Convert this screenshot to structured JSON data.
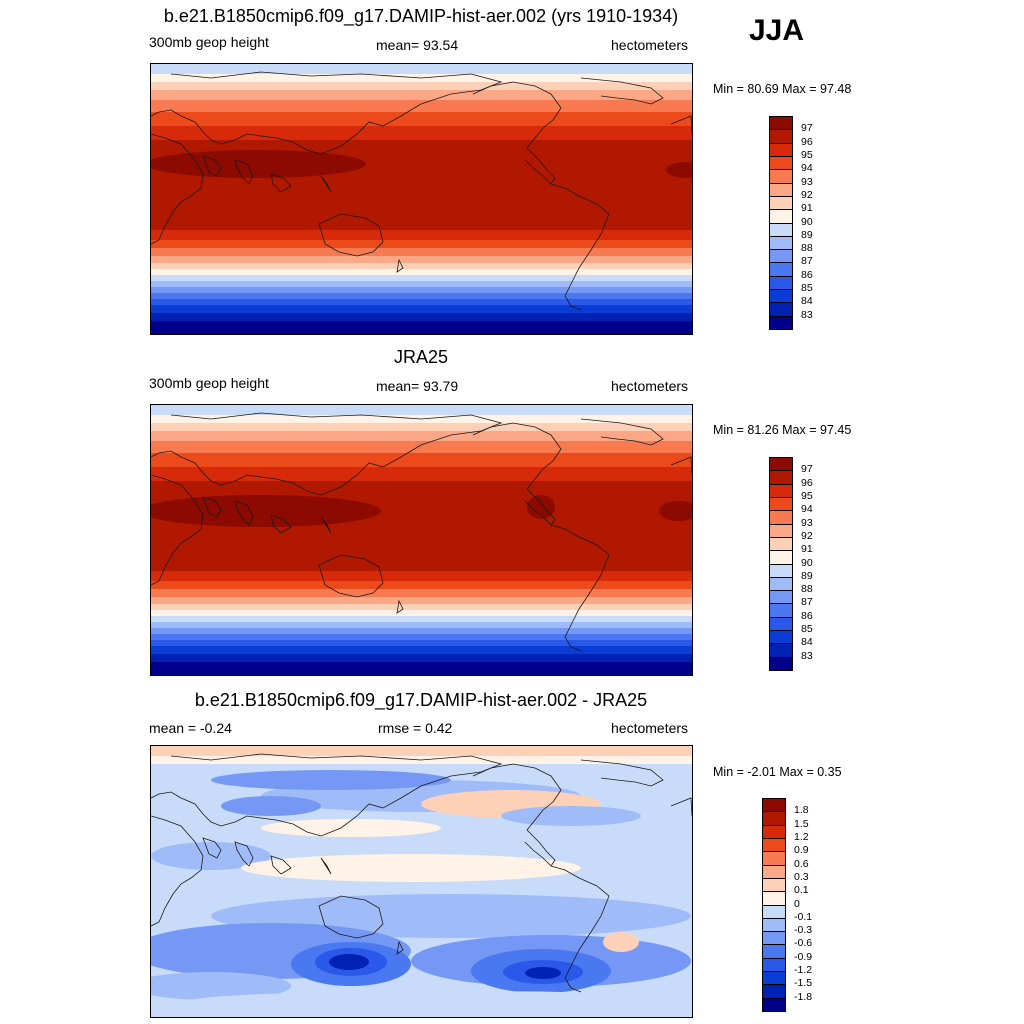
{
  "season": "JJA",
  "panels": [
    {
      "title": "b.e21.B1850cmip6.f09_g17.DAMIP-hist-aer.002 (yrs 1910-1934)",
      "left_label": "300mb geop height",
      "center_label": "mean=  93.54",
      "right_label": "hectometers",
      "minmax": "Min =  80.69 Max =  97.48"
    },
    {
      "title": "JRA25",
      "left_label": "300mb geop height",
      "center_label": "mean=  93.79",
      "right_label": "hectometers",
      "minmax": "Min =  81.26 Max =  97.45"
    },
    {
      "title": "b.e21.B1850cmip6.f09_g17.DAMIP-hist-aer.002 - JRA25",
      "left_label": "mean =  -0.24",
      "center_label": "rmse =   0.42",
      "right_label": "hectometers",
      "minmax": "Min =  -2.01 Max =   0.35"
    }
  ],
  "chart_data": [
    {
      "type": "heatmap",
      "title": "b.e21.B1850cmip6.f09_g17.DAMIP-hist-aer.002 (yrs 1910-1934)",
      "variable": "300mb geop height",
      "units": "hectometers",
      "mean": 93.54,
      "min": 80.69,
      "max": 97.48,
      "levels": [
        83,
        84,
        85,
        86,
        87,
        88,
        89,
        90,
        91,
        92,
        93,
        94,
        95,
        96,
        97
      ],
      "colors": [
        "#00008a",
        "#0022b4",
        "#0a3cd6",
        "#2a58e8",
        "#4a78f0",
        "#7498f4",
        "#a0bcf8",
        "#c8dcfa",
        "#fff2e6",
        "#fdd0b8",
        "#fca886",
        "#f77a50",
        "#ec4a1a",
        "#d62a0a",
        "#b01800",
        "#8c0a00"
      ]
    },
    {
      "type": "heatmap",
      "title": "JRA25",
      "variable": "300mb geop height",
      "units": "hectometers",
      "mean": 93.79,
      "min": 81.26,
      "max": 97.45,
      "levels": [
        83,
        84,
        85,
        86,
        87,
        88,
        89,
        90,
        91,
        92,
        93,
        94,
        95,
        96,
        97
      ],
      "colors": [
        "#00008a",
        "#0022b4",
        "#0a3cd6",
        "#2a58e8",
        "#4a78f0",
        "#7498f4",
        "#a0bcf8",
        "#c8dcfa",
        "#fff2e6",
        "#fdd0b8",
        "#fca886",
        "#f77a50",
        "#ec4a1a",
        "#d62a0a",
        "#b01800",
        "#8c0a00"
      ]
    },
    {
      "type": "heatmap",
      "title": "b.e21.B1850cmip6.f09_g17.DAMIP-hist-aer.002 - JRA25",
      "units": "hectometers",
      "mean": -0.24,
      "rmse": 0.42,
      "min": -2.01,
      "max": 0.35,
      "levels": [
        -1.8,
        -1.5,
        -1.2,
        -0.9,
        -0.6,
        -0.3,
        -0.1,
        0,
        0.1,
        0.3,
        0.6,
        0.9,
        1.2,
        1.5,
        1.8
      ],
      "colors": [
        "#00008a",
        "#0022b4",
        "#0a3cd6",
        "#2a58e8",
        "#4a78f0",
        "#7498f4",
        "#a0bcf8",
        "#c8dcfa",
        "#fff2e6",
        "#fdd0b8",
        "#fca886",
        "#f77a50",
        "#ec4a1a",
        "#d62a0a",
        "#b01800",
        "#8c0a00"
      ]
    }
  ]
}
